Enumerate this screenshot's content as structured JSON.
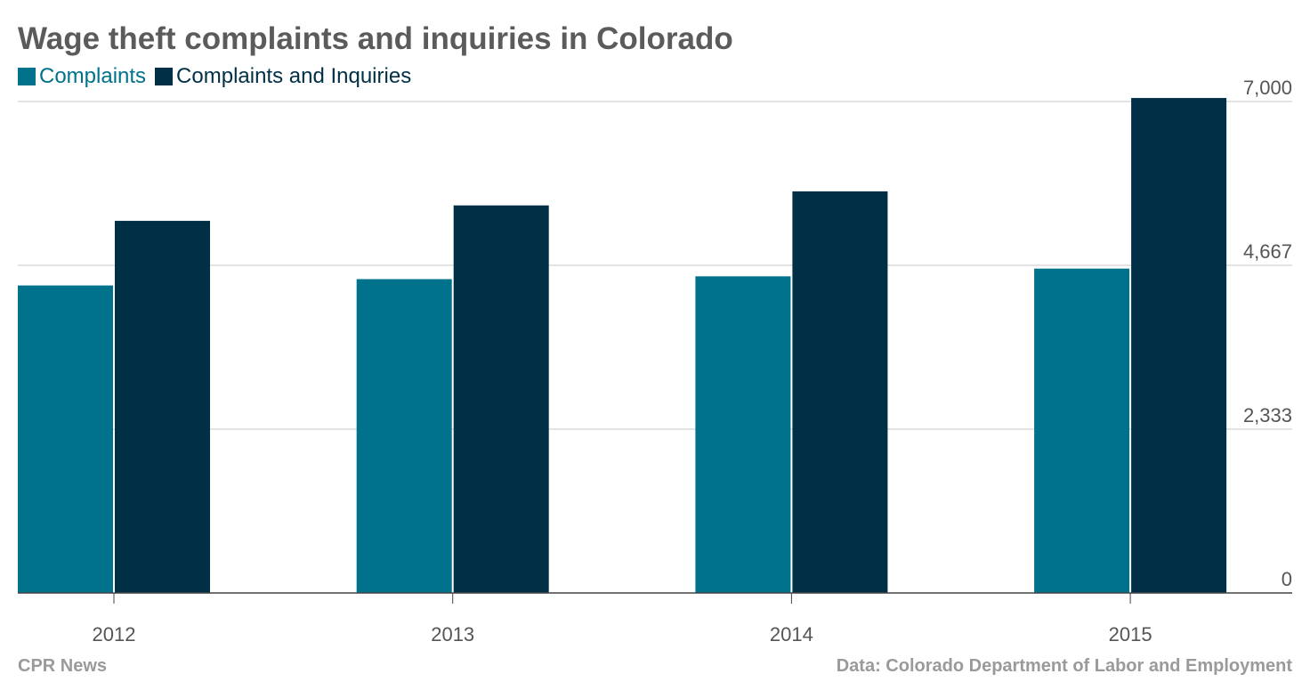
{
  "title": "Wage theft complaints and inquiries in Colorado",
  "footer": {
    "source_left": "CPR News",
    "source_right": "Data: Colorado Department of Labor and Employment"
  },
  "colors": {
    "complaints": "#00728b",
    "complaints_and_inquiries": "#002f46",
    "grid": "#dcdcdc",
    "axis": "#444444"
  },
  "chart_data": {
    "type": "bar",
    "categories": [
      "2012",
      "2013",
      "2014",
      "2015"
    ],
    "series": [
      {
        "name": "Complaints",
        "values": [
          4380,
          4470,
          4510,
          4620
        ]
      },
      {
        "name": "Complaints and Inquiries",
        "values": [
          5300,
          5520,
          5720,
          7050
        ]
      }
    ],
    "y_ticks": [
      "0",
      "2,333",
      "4,667",
      "7,000"
    ],
    "y_tick_values": [
      0,
      2333,
      4667,
      7000
    ],
    "ylim": [
      0,
      7000
    ],
    "xlabel": "",
    "ylabel": "",
    "y_axis_side": "right",
    "grid": true,
    "legend_position": "top-left"
  }
}
